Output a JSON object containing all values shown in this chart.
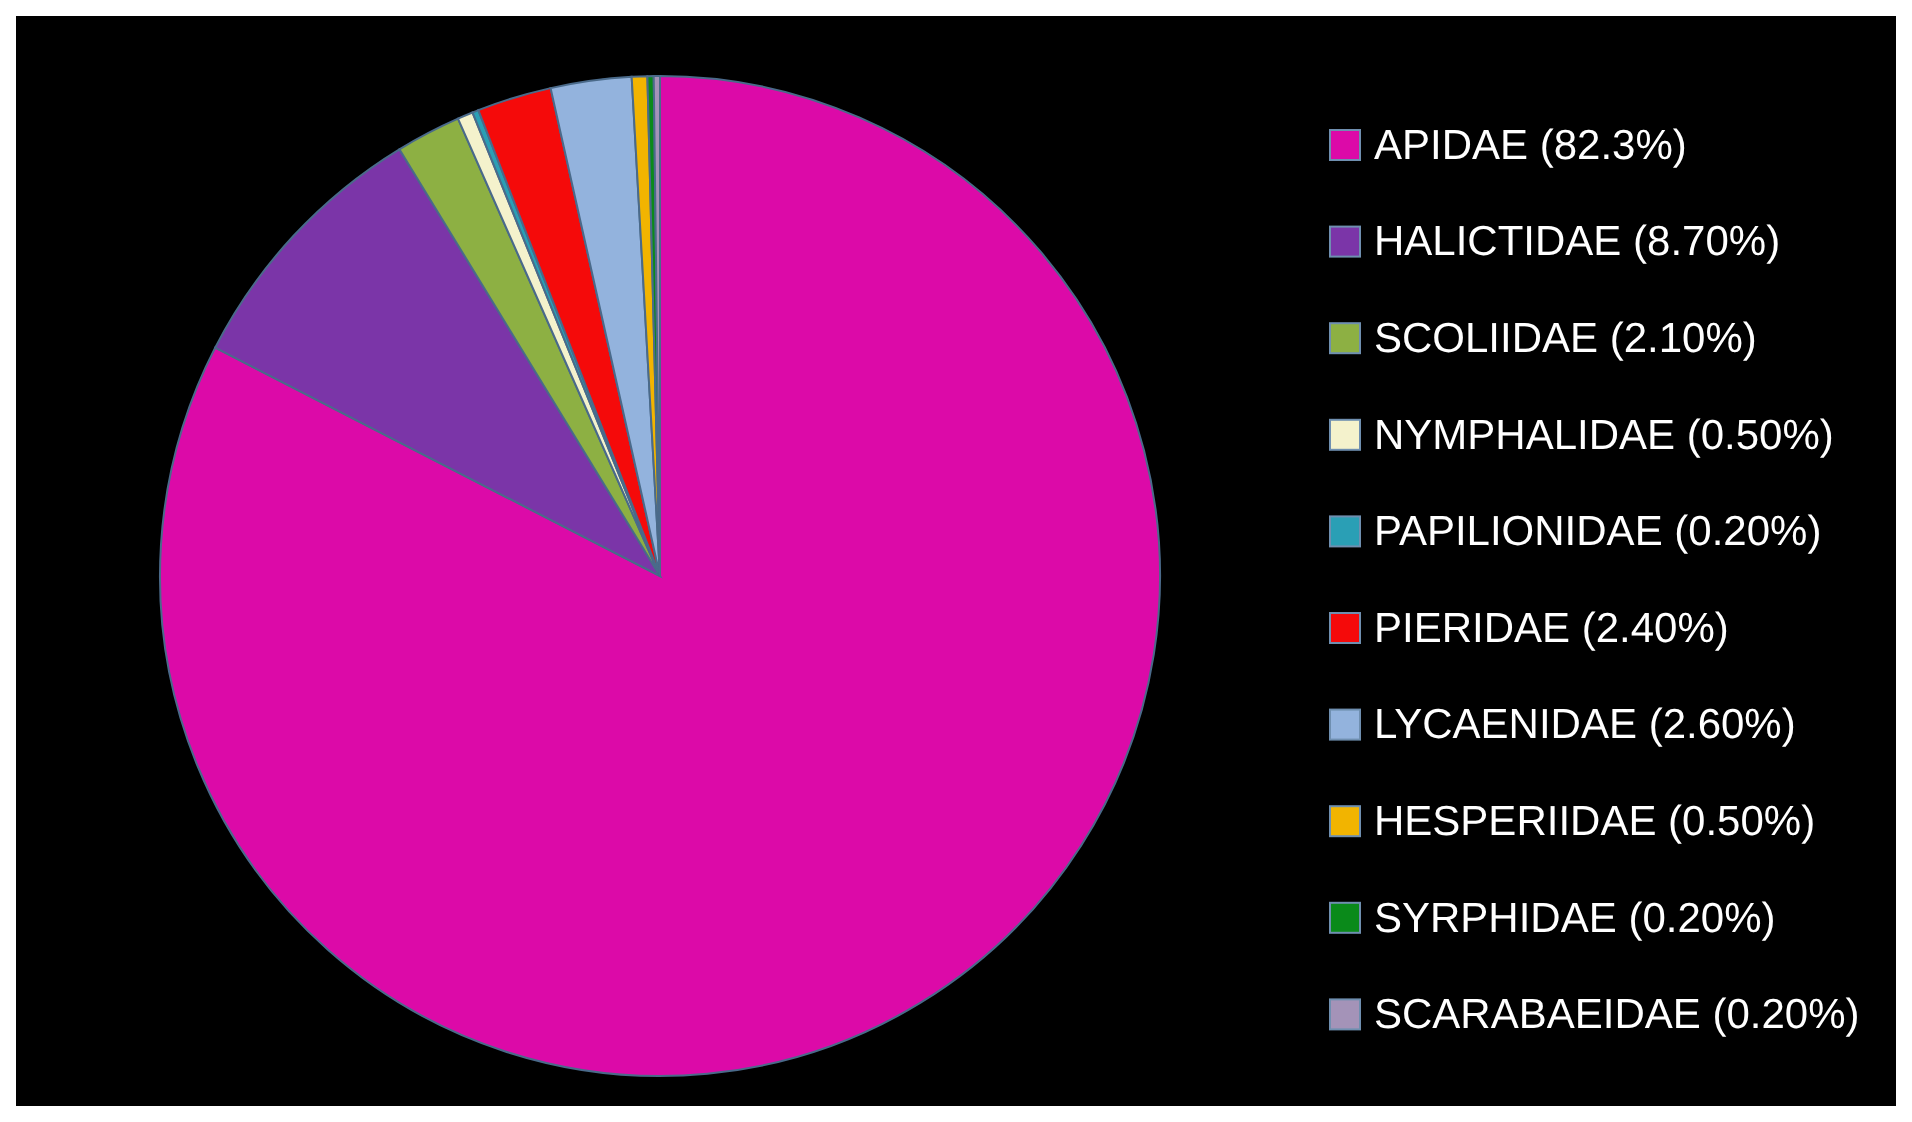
{
  "chart_data": {
    "type": "pie",
    "categories": [
      "APIDAE (82.3%)",
      "HALICTIDAE (8.70%)",
      "SCOLIIDAE (2.10%)",
      "NYMPHALIDAE (0.50%)",
      "PAPILIONIDAE (0.20%)",
      "PIERIDAE (2.40%)",
      "LYCAENIDAE (2.60%)",
      "HESPERIIDAE (0.50%)",
      "SYRPHIDAE (0.20%)",
      "SCARABAEIDAE (0.20%)"
    ],
    "values": [
      82.3,
      8.7,
      2.1,
      0.5,
      0.2,
      2.4,
      2.6,
      0.5,
      0.2,
      0.2
    ],
    "colors": [
      "#dc0aa8",
      "#7b35a8",
      "#8db043",
      "#f4f2cc",
      "#2a9fb5",
      "#f50a0a",
      "#93b3dd",
      "#f2b400",
      "#0a8a1a",
      "#a493b8"
    ],
    "legend": "right"
  }
}
